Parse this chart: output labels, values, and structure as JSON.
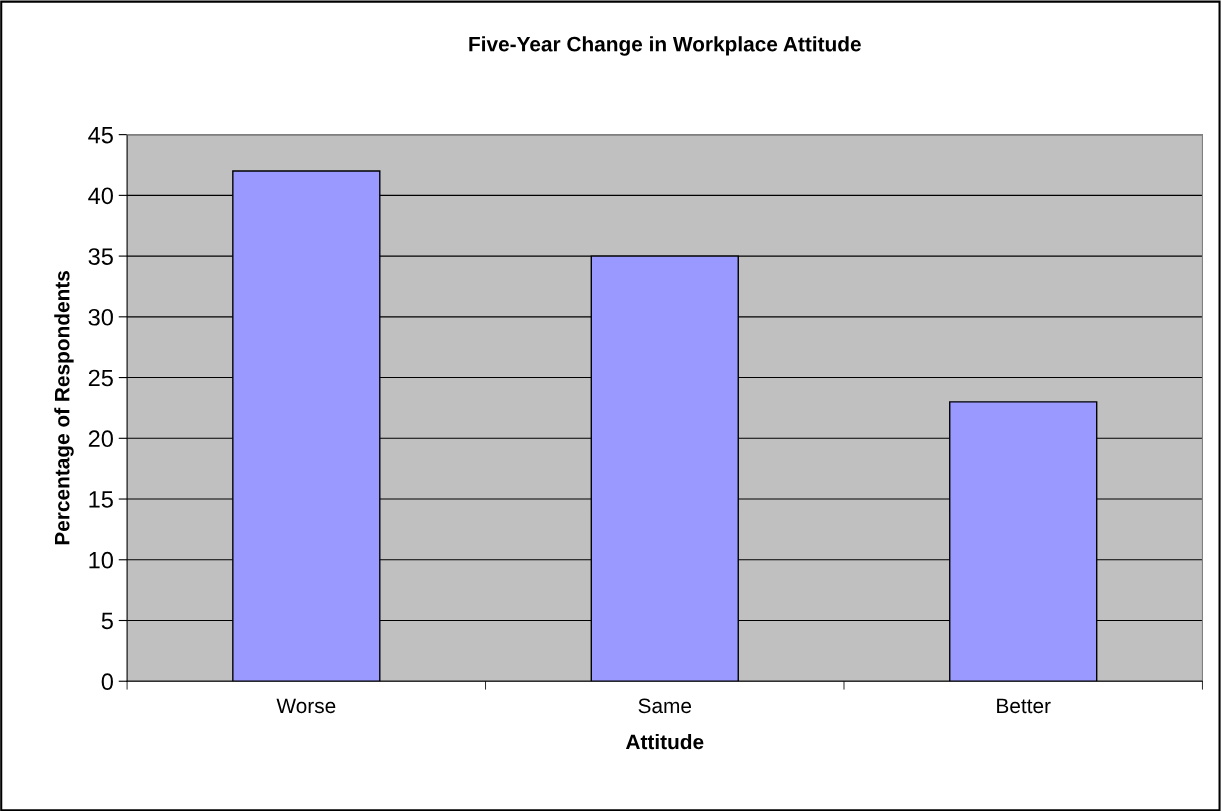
{
  "chart_data": {
    "type": "bar",
    "title": "Five-Year Change in Workplace Attitude",
    "xlabel": "Attitude",
    "ylabel": "Percentage of Respondents",
    "categories": [
      "Worse",
      "Same",
      "Better"
    ],
    "values": [
      42,
      35,
      23
    ],
    "color": "#9999ff",
    "ylim": [
      0,
      45
    ],
    "yticks": [
      0,
      5,
      10,
      15,
      20,
      25,
      30,
      35,
      40,
      45
    ],
    "grid": "y"
  }
}
